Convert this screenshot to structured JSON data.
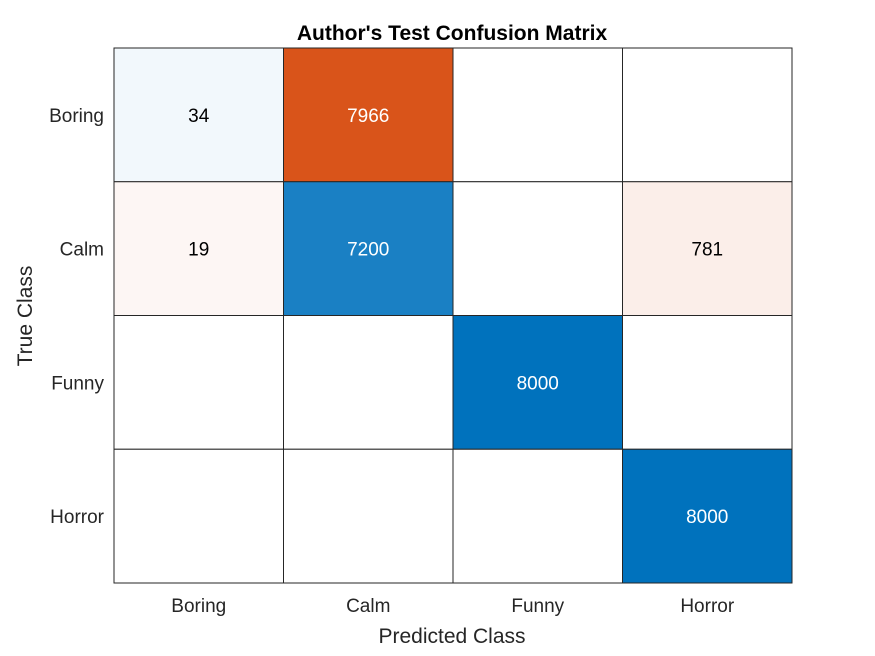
{
  "chart_data": {
    "type": "heatmap",
    "title": "Author's Test Confusion Matrix",
    "xlabel": "Predicted Class",
    "ylabel": "True Class",
    "x_categories": [
      "Boring",
      "Calm",
      "Funny",
      "Horror"
    ],
    "y_categories": [
      "Boring",
      "Calm",
      "Funny",
      "Horror"
    ],
    "matrix": [
      [
        34,
        7966,
        0,
        0
      ],
      [
        19,
        7200,
        0,
        781
      ],
      [
        0,
        0,
        8000,
        0
      ],
      [
        0,
        0,
        0,
        8000
      ]
    ],
    "grid": true,
    "legend": "none",
    "colors": {
      "correct": "#0072bd",
      "incorrect": "#d95319",
      "empty": "#ffffff",
      "grid_line": "#262626",
      "light_text": "#ffffff",
      "dark_text": "#000000"
    }
  }
}
